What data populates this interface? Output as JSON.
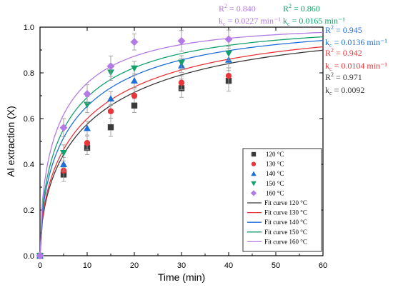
{
  "chart_data": {
    "type": "scatter",
    "xlabel": "Time (min)",
    "ylabel": "Al extraction (X)",
    "xlim": [
      0,
      60
    ],
    "ylim": [
      0,
      1.0
    ],
    "x_ticks": [
      0,
      10,
      20,
      30,
      40,
      50,
      60
    ],
    "y_ticks": [
      0.0,
      0.2,
      0.4,
      0.6,
      0.8,
      1.0
    ],
    "y_tick_labels": [
      "0.0",
      "0.2",
      "0.4",
      "0.6",
      "0.8",
      "1.0"
    ],
    "grid": false,
    "legend_position": "lower-right",
    "x": [
      0,
      5,
      10,
      15,
      20,
      30,
      40
    ],
    "series": [
      {
        "name": "120 °C",
        "fit_name": "Fit curve 120 °C",
        "color": "#3a3a3a",
        "marker": "square",
        "values": [
          0,
          0.355,
          0.472,
          0.562,
          0.657,
          0.733,
          0.765
        ],
        "errors": [
          0,
          0.03,
          0.03,
          0.04,
          0.03,
          0.04,
          0.045
        ],
        "r2": "0.971",
        "kc": "0.0092",
        "fit_a": 0.12
      },
      {
        "name": "130 °C",
        "fit_name": "Fit curve 130 °C",
        "color": "#e8363a",
        "marker": "circle",
        "values": [
          0,
          0.372,
          0.493,
          0.632,
          0.7,
          0.757,
          0.787
        ],
        "errors": [
          0,
          0.03,
          0.03,
          0.03,
          0.03,
          0.03,
          0.035
        ],
        "r2": "0.942",
        "kc": "0.0104 min⁻¹",
        "fit_a": 0.12
      },
      {
        "name": "140 °C",
        "fit_name": "Fit curve 140 °C",
        "color": "#1f6fd8",
        "marker": "triangle-up",
        "values": [
          0,
          0.4,
          0.558,
          0.687,
          0.766,
          0.832,
          0.857
        ],
        "errors": [
          0,
          0.03,
          0.03,
          0.03,
          0.03,
          0.03,
          0.035
        ],
        "r2": "0.945",
        "kc": "0.0136 min⁻¹",
        "fit_a": 0.12
      },
      {
        "name": "150 °C",
        "fit_name": "Fit curve 150 °C",
        "color": "#14a06a",
        "marker": "triangle-down",
        "values": [
          0,
          0.45,
          0.661,
          0.802,
          0.82,
          0.845,
          0.885
        ],
        "errors": [
          0,
          0.035,
          0.035,
          0.035,
          0.03,
          0.03,
          0.03
        ],
        "r2": "0.860",
        "kc": "0.0165 min⁻¹",
        "fit_a": 0.12
      },
      {
        "name": "160 °C",
        "fit_name": "Fit curve 160 °C",
        "color": "#b37be6",
        "marker": "diamond",
        "values": [
          0,
          0.56,
          0.708,
          0.829,
          0.935,
          0.94,
          0.947
        ],
        "errors": [
          0,
          0.04,
          0.04,
          0.045,
          0.035,
          0.045,
          0.04
        ],
        "r2": "0.840",
        "kc": "0.0227 min⁻¹",
        "fit_a": 0.12
      }
    ],
    "annotation_prefix_r2": "R",
    "annotation_sup_r2": "2",
    "annotation_eq": " = ",
    "annotation_k": "k",
    "annotation_k_sub": "c",
    "annotation_unit": "min⁻¹"
  }
}
